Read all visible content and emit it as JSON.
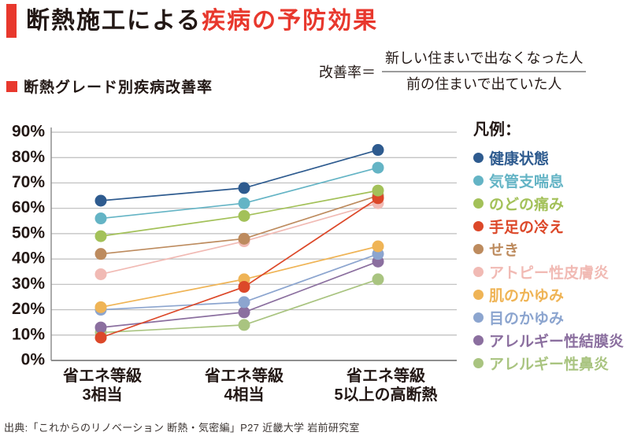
{
  "header": {
    "title_black": "断熱施工による",
    "title_red": "疾病の予防効果"
  },
  "subtitle": "断熱グレード別疾病改善率",
  "formula": {
    "label": "改善率＝",
    "numerator": "新しい住まいで出なくなった人",
    "denominator": "前の住まいで出ていた人"
  },
  "legend_title": "凡例：",
  "source": "出典:「これからのリノベーション 断熱・気密編」P27 近畿大学 岩前研究室",
  "colors": {
    "accent_red": "#e8382d",
    "grid": "#bdbdbd",
    "axis": "#8f8f8f",
    "text_dark": "#231815"
  },
  "chart_data": {
    "type": "line",
    "title": "断熱グレード別疾病改善率",
    "xlabel": "",
    "ylabel": "改善率",
    "ylim": [
      0,
      90
    ],
    "grid": true,
    "legend_position": "right",
    "categories": [
      "省エネ等級\n3相当",
      "省エネ等級\n4相当",
      "省エネ等級\n5以上の高断熱"
    ],
    "y_ticks": [
      "90%",
      "80%",
      "70%",
      "60%",
      "50%",
      "40%",
      "30%",
      "20%",
      "10%",
      "0%"
    ],
    "series": [
      {
        "name": "健康状態",
        "color": "#2e5b8f",
        "values": [
          63,
          68,
          83
        ]
      },
      {
        "name": "気管支喘息",
        "color": "#64b4c5",
        "values": [
          56,
          62,
          76
        ]
      },
      {
        "name": "のどの痛み",
        "color": "#a3c159",
        "values": [
          49,
          57,
          67
        ]
      },
      {
        "name": "手足の冷え",
        "color": "#dc4829",
        "values": [
          9,
          29,
          64
        ]
      },
      {
        "name": "せき",
        "color": "#bd8b5e",
        "values": [
          42,
          48,
          65
        ]
      },
      {
        "name": "アトピー性皮膚炎",
        "color": "#f1bab4",
        "values": [
          34,
          47,
          62
        ]
      },
      {
        "name": "肌のかゆみ",
        "color": "#efb456",
        "values": [
          21,
          32,
          45
        ]
      },
      {
        "name": "目のかゆみ",
        "color": "#8ca5cf",
        "values": [
          20,
          23,
          42
        ]
      },
      {
        "name": "アレルギー性結膜炎",
        "color": "#8b6f9f",
        "values": [
          13,
          19,
          39
        ]
      },
      {
        "name": "アレルギー性鼻炎",
        "color": "#a9c480",
        "values": [
          11,
          14,
          32
        ]
      }
    ]
  }
}
